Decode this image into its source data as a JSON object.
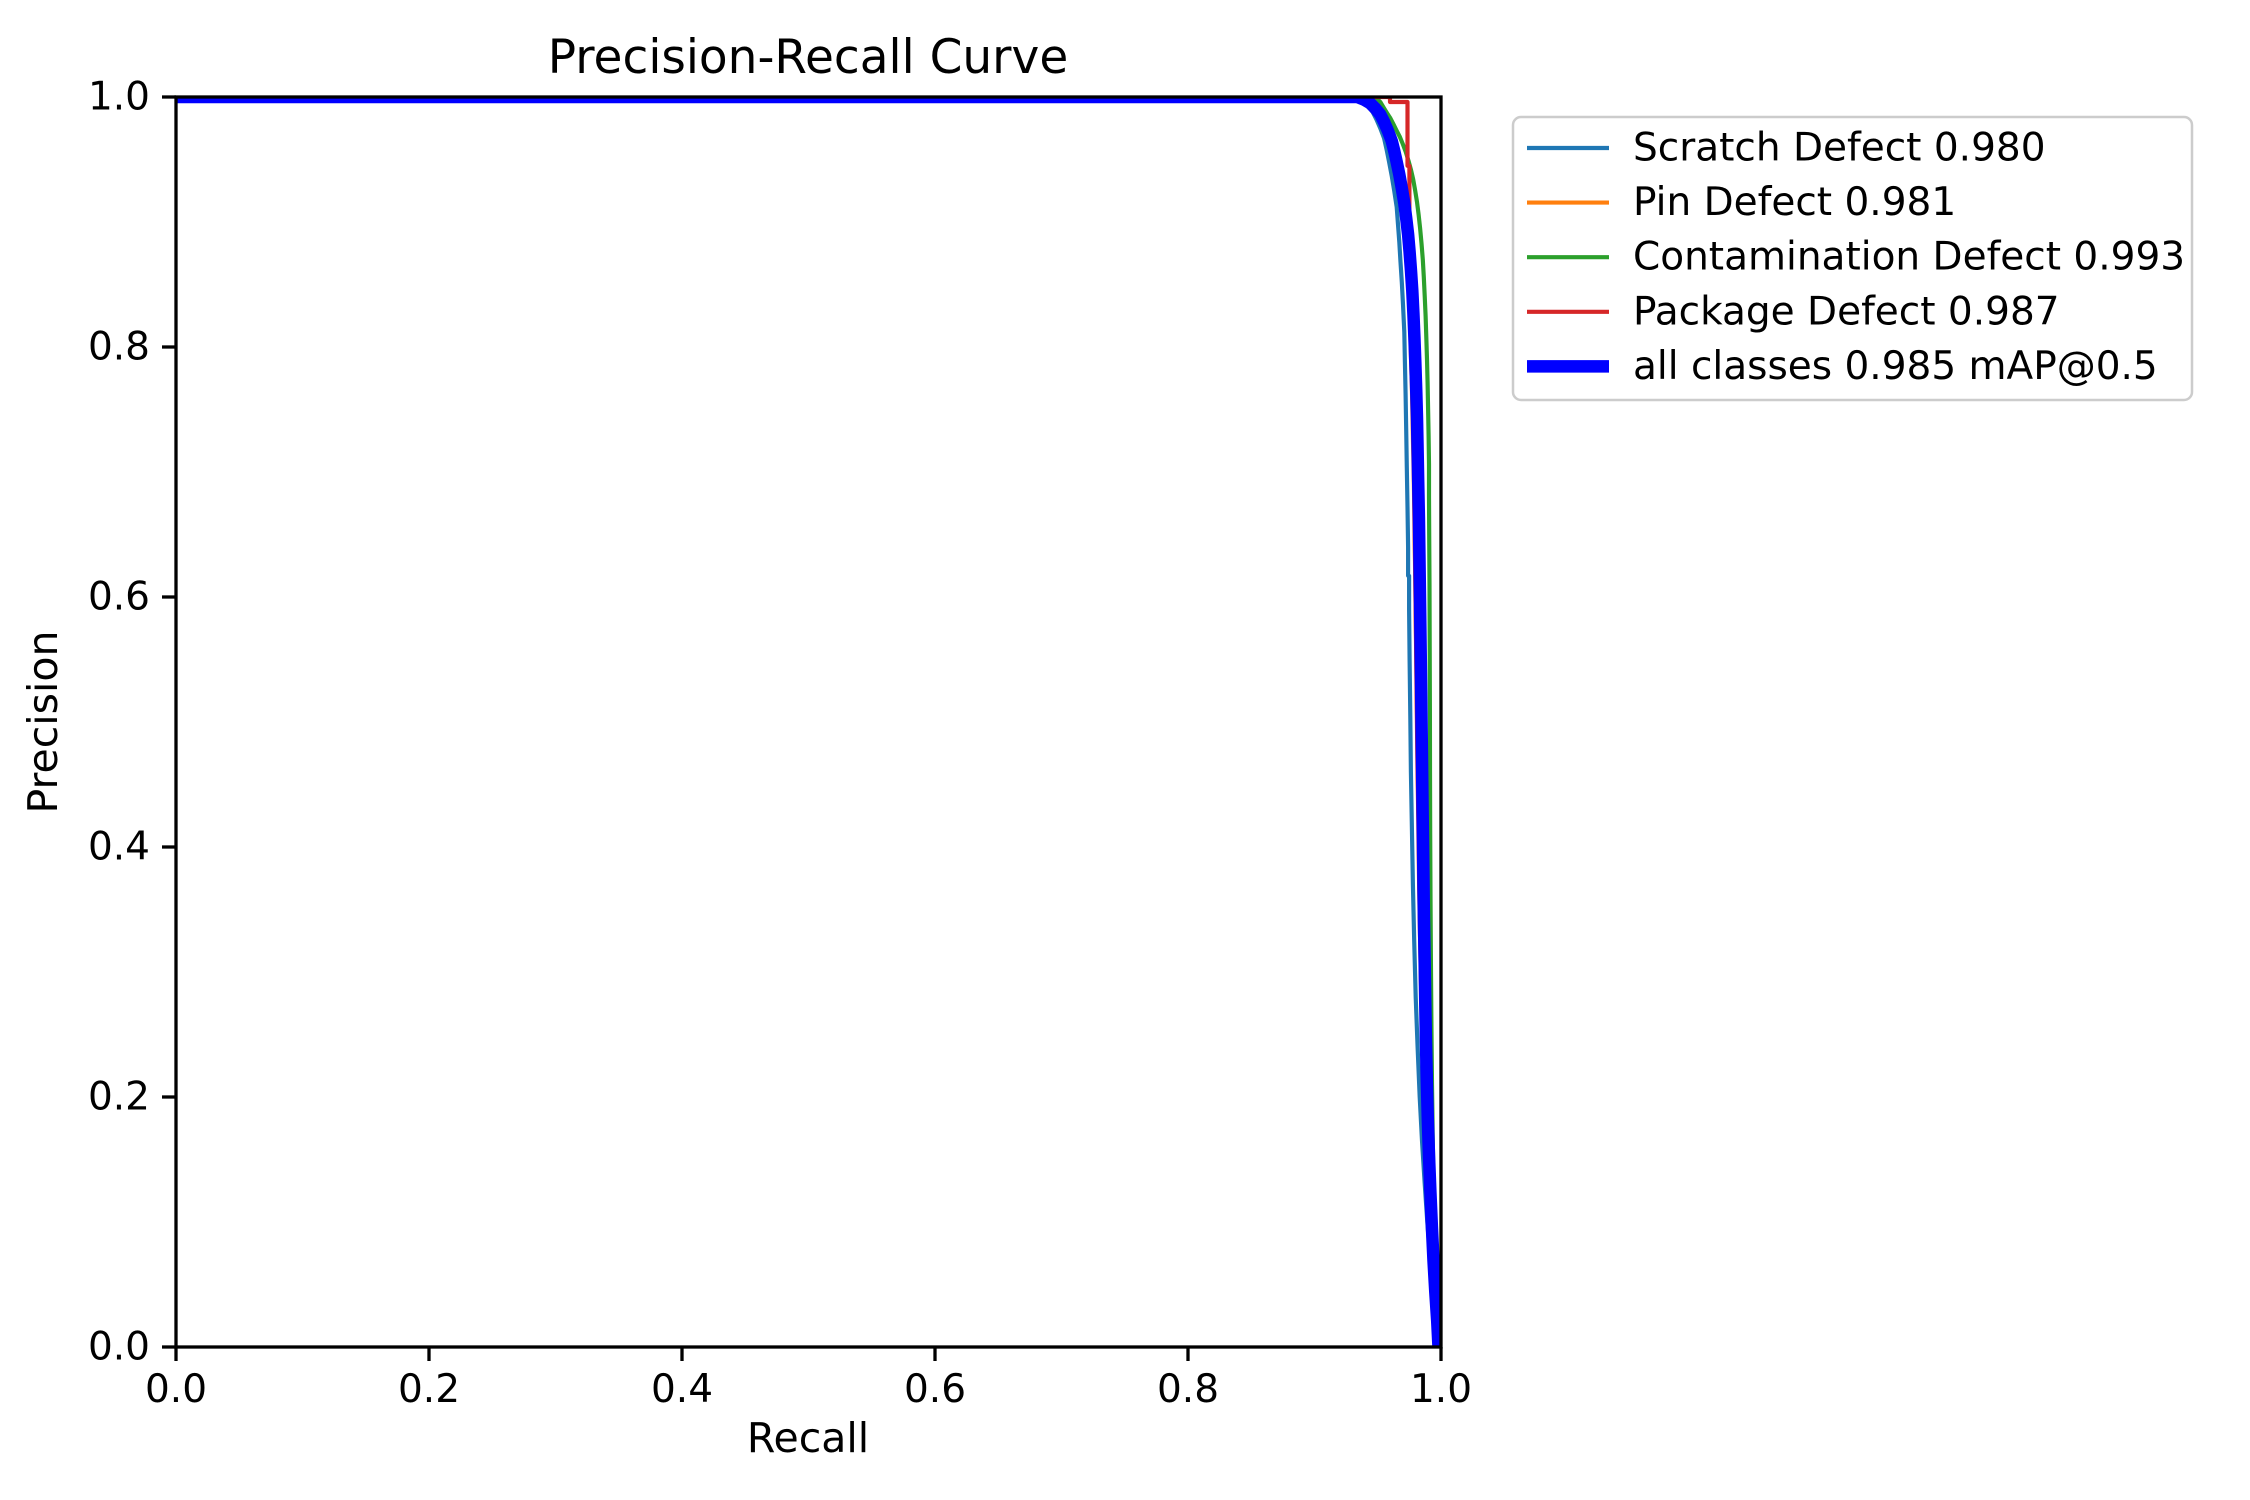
{
  "chart_data": {
    "type": "line",
    "title": "Precision-Recall Curve",
    "xlabel": "Recall",
    "ylabel": "Precision",
    "xlim": [
      0.0,
      1.0
    ],
    "ylim": [
      0.0,
      1.0
    ],
    "grid": false,
    "background": "#ffffff",
    "spine_color": "#000000",
    "xticks": {
      "values": [
        0.0,
        0.2,
        0.4,
        0.6,
        0.8,
        1.0
      ],
      "labels": [
        "0.0",
        "0.2",
        "0.4",
        "0.6",
        "0.8",
        "1.0"
      ]
    },
    "yticks": {
      "values": [
        0.0,
        0.2,
        0.4,
        0.6,
        0.8,
        1.0
      ],
      "labels": [
        "0.0",
        "0.2",
        "0.4",
        "0.6",
        "0.8",
        "1.0"
      ]
    },
    "legend": {
      "location": "upper right outside plot",
      "border_color": "#cccccc",
      "fill_color": "#ffffff",
      "fill_opacity": 0.9
    },
    "series": [
      {
        "name": "Scratch Defect",
        "label": "Scratch Defect 0.980",
        "ap": 0.98,
        "color": "#1f77b4",
        "linewidth": 1,
        "points": [
          [
            0,
            1
          ],
          [
            0.92,
            1
          ],
          [
            0.931,
            0.999
          ],
          [
            0.938,
            0.997
          ],
          [
            0.942,
            0.993
          ],
          [
            0.946,
            0.988
          ],
          [
            0.949,
            0.982
          ],
          [
            0.952,
            0.975
          ],
          [
            0.955,
            0.967
          ],
          [
            0.957,
            0.958
          ],
          [
            0.959,
            0.948
          ],
          [
            0.961,
            0.937
          ],
          [
            0.963,
            0.925
          ],
          [
            0.965,
            0.912
          ],
          [
            0.966,
            0.898
          ],
          [
            0.967,
            0.884
          ],
          [
            0.968,
            0.868
          ],
          [
            0.969,
            0.852
          ],
          [
            0.97,
            0.834
          ],
          [
            0.971,
            0.812
          ],
          [
            0.9715,
            0.788
          ],
          [
            0.972,
            0.762
          ],
          [
            0.9725,
            0.734
          ],
          [
            0.973,
            0.704
          ],
          [
            0.9735,
            0.672
          ],
          [
            0.974,
            0.64
          ],
          [
            0.974,
            0.617
          ],
          [
            0.9748,
            0.617
          ],
          [
            0.9748,
            0.59
          ],
          [
            0.9752,
            0.55
          ],
          [
            0.9757,
            0.505
          ],
          [
            0.9762,
            0.46
          ],
          [
            0.977,
            0.415
          ],
          [
            0.9778,
            0.37
          ],
          [
            0.9788,
            0.325
          ],
          [
            0.98,
            0.28
          ],
          [
            0.9815,
            0.24
          ],
          [
            0.9832,
            0.2
          ],
          [
            0.985,
            0.165
          ],
          [
            0.987,
            0.132
          ],
          [
            0.9892,
            0.1
          ],
          [
            0.9915,
            0.07
          ],
          [
            0.9938,
            0.042
          ],
          [
            0.996,
            0.018
          ],
          [
            0.9972,
            0
          ]
        ]
      },
      {
        "name": "Pin Defect",
        "label": "Pin Defect 0.981",
        "ap": 0.981,
        "color": "#ff7f0e",
        "linewidth": 1,
        "points": [
          [
            0,
            1
          ],
          [
            0.933,
            1
          ],
          [
            0.938,
            0.998
          ],
          [
            0.943,
            0.994
          ],
          [
            0.947,
            0.99
          ],
          [
            0.951,
            0.984
          ],
          [
            0.954,
            0.978
          ],
          [
            0.957,
            0.97
          ],
          [
            0.96,
            0.962
          ],
          [
            0.962,
            0.953
          ],
          [
            0.964,
            0.944
          ],
          [
            0.966,
            0.933
          ],
          [
            0.968,
            0.921
          ],
          [
            0.9695,
            0.909
          ],
          [
            0.971,
            0.895
          ],
          [
            0.9722,
            0.881
          ],
          [
            0.9733,
            0.865
          ],
          [
            0.9742,
            0.849
          ],
          [
            0.975,
            0.831
          ],
          [
            0.9757,
            0.812
          ],
          [
            0.9763,
            0.792
          ],
          [
            0.9769,
            0.771
          ],
          [
            0.9774,
            0.748
          ],
          [
            0.9779,
            0.724
          ],
          [
            0.9784,
            0.699
          ],
          [
            0.9788,
            0.673
          ],
          [
            0.9792,
            0.645
          ],
          [
            0.9796,
            0.617
          ],
          [
            0.98,
            0.588
          ],
          [
            0.9804,
            0.558
          ],
          [
            0.9808,
            0.527
          ],
          [
            0.9812,
            0.496
          ],
          [
            0.9816,
            0.464
          ],
          [
            0.9821,
            0.432
          ],
          [
            0.9826,
            0.4
          ],
          [
            0.9831,
            0.368
          ],
          [
            0.9837,
            0.335
          ],
          [
            0.9843,
            0.303
          ],
          [
            0.985,
            0.271
          ],
          [
            0.9858,
            0.24
          ],
          [
            0.9867,
            0.209
          ],
          [
            0.9877,
            0.178
          ],
          [
            0.9889,
            0.148
          ],
          [
            0.9903,
            0.119
          ],
          [
            0.9918,
            0.091
          ],
          [
            0.9934,
            0.065
          ],
          [
            0.9951,
            0.041
          ],
          [
            0.9968,
            0.019
          ],
          [
            0.998,
            0
          ]
        ]
      },
      {
        "name": "Contamination Defect",
        "label": "Contamination Defect 0.993",
        "ap": 0.993,
        "color": "#2ca02c",
        "linewidth": 1,
        "points": [
          [
            0,
            1
          ],
          [
            0.948,
            1
          ],
          [
            0.952,
            0.996
          ],
          [
            0.955,
            0.991
          ],
          [
            0.9575,
            0.987
          ],
          [
            0.96,
            0.983
          ],
          [
            0.9625,
            0.978
          ],
          [
            0.965,
            0.973
          ],
          [
            0.9675,
            0.968
          ],
          [
            0.97,
            0.962
          ],
          [
            0.9722,
            0.956
          ],
          [
            0.9743,
            0.949
          ],
          [
            0.9762,
            0.942
          ],
          [
            0.978,
            0.934
          ],
          [
            0.9796,
            0.925
          ],
          [
            0.981,
            0.916
          ],
          [
            0.9823,
            0.906
          ],
          [
            0.9835,
            0.895
          ],
          [
            0.9846,
            0.883
          ],
          [
            0.9856,
            0.87
          ],
          [
            0.9864,
            0.856
          ],
          [
            0.9871,
            0.841
          ],
          [
            0.9878,
            0.825
          ],
          [
            0.9884,
            0.808
          ],
          [
            0.9889,
            0.79
          ],
          [
            0.9894,
            0.771
          ],
          [
            0.9898,
            0.75
          ],
          [
            0.9902,
            0.729
          ],
          [
            0.9905,
            0.706
          ],
          [
            0.9905,
            0.68
          ],
          [
            0.9907,
            0.65
          ],
          [
            0.9909,
            0.61
          ],
          [
            0.9911,
            0.56
          ],
          [
            0.9912,
            0.51
          ],
          [
            0.9913,
            0.46
          ],
          [
            0.9915,
            0.41
          ],
          [
            0.9917,
            0.36
          ],
          [
            0.992,
            0.31
          ],
          [
            0.9924,
            0.26
          ],
          [
            0.9929,
            0.21
          ],
          [
            0.9935,
            0.165
          ],
          [
            0.9942,
            0.12
          ],
          [
            0.995,
            0.08
          ],
          [
            0.9958,
            0.045
          ],
          [
            0.9966,
            0.015
          ],
          [
            0.997,
            0
          ]
        ]
      },
      {
        "name": "Package Defect",
        "label": "Package Defect 0.987",
        "ap": 0.987,
        "color": "#d62728",
        "linewidth": 1,
        "points": [
          [
            0,
            1
          ],
          [
            0.9597,
            1
          ],
          [
            0.9597,
            0.996
          ],
          [
            0.9735,
            0.996
          ],
          [
            0.9735,
            0.945
          ],
          [
            0.975,
            0.945
          ],
          [
            0.975,
            0.89
          ],
          [
            0.9757,
            0.868
          ],
          [
            0.9762,
            0.845
          ],
          [
            0.9767,
            0.82
          ],
          [
            0.9772,
            0.795
          ],
          [
            0.9777,
            0.768
          ],
          [
            0.9781,
            0.74
          ],
          [
            0.9785,
            0.71
          ],
          [
            0.9789,
            0.679
          ],
          [
            0.9793,
            0.647
          ],
          [
            0.9797,
            0.614
          ],
          [
            0.9801,
            0.58
          ],
          [
            0.9805,
            0.545
          ],
          [
            0.9809,
            0.51
          ],
          [
            0.9813,
            0.474
          ],
          [
            0.9818,
            0.438
          ],
          [
            0.9823,
            0.402
          ],
          [
            0.9828,
            0.366
          ],
          [
            0.9834,
            0.33
          ],
          [
            0.9841,
            0.295
          ],
          [
            0.9849,
            0.26
          ],
          [
            0.9858,
            0.226
          ],
          [
            0.9868,
            0.193
          ],
          [
            0.988,
            0.161
          ],
          [
            0.9893,
            0.13
          ],
          [
            0.9908,
            0.101
          ],
          [
            0.9924,
            0.073
          ],
          [
            0.9941,
            0.048
          ],
          [
            0.9958,
            0.025
          ],
          [
            0.998,
            0
          ]
        ]
      },
      {
        "name": "all classes",
        "label": "all classes 0.985 mAP@0.5",
        "map50": 0.985,
        "color": "#0000ff",
        "linewidth": 3,
        "points": [
          [
            0,
            1
          ],
          [
            0.934,
            1
          ],
          [
            0.939,
            0.998
          ],
          [
            0.944,
            0.995
          ],
          [
            0.948,
            0.991
          ],
          [
            0.952,
            0.986
          ],
          [
            0.955,
            0.98
          ],
          [
            0.958,
            0.973
          ],
          [
            0.961,
            0.965
          ],
          [
            0.963,
            0.957
          ],
          [
            0.965,
            0.948
          ],
          [
            0.967,
            0.938
          ],
          [
            0.969,
            0.927
          ],
          [
            0.971,
            0.915
          ],
          [
            0.9725,
            0.903
          ],
          [
            0.974,
            0.89
          ],
          [
            0.9752,
            0.876
          ],
          [
            0.9763,
            0.861
          ],
          [
            0.9773,
            0.845
          ],
          [
            0.9782,
            0.827
          ],
          [
            0.979,
            0.808
          ],
          [
            0.9797,
            0.788
          ],
          [
            0.9804,
            0.766
          ],
          [
            0.981,
            0.743
          ],
          [
            0.9815,
            0.718
          ],
          [
            0.982,
            0.692
          ],
          [
            0.9825,
            0.664
          ],
          [
            0.9829,
            0.635
          ],
          [
            0.9833,
            0.605
          ],
          [
            0.9837,
            0.574
          ],
          [
            0.9841,
            0.542
          ],
          [
            0.9845,
            0.509
          ],
          [
            0.9849,
            0.476
          ],
          [
            0.9853,
            0.443
          ],
          [
            0.9857,
            0.41
          ],
          [
            0.9861,
            0.377
          ],
          [
            0.9865,
            0.344
          ],
          [
            0.987,
            0.311
          ],
          [
            0.9875,
            0.278
          ],
          [
            0.9881,
            0.246
          ],
          [
            0.9888,
            0.214
          ],
          [
            0.9896,
            0.183
          ],
          [
            0.9905,
            0.153
          ],
          [
            0.9916,
            0.124
          ],
          [
            0.9928,
            0.096
          ],
          [
            0.9941,
            0.069
          ],
          [
            0.9955,
            0.044
          ],
          [
            0.997,
            0.021
          ],
          [
            0.998,
            0
          ]
        ]
      }
    ]
  }
}
